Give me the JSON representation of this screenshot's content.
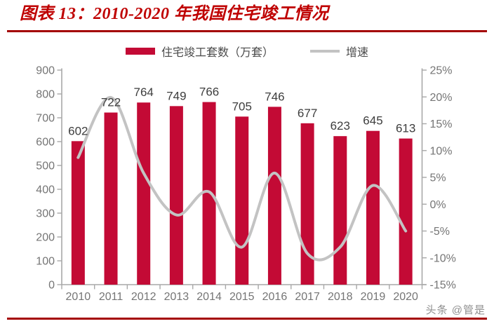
{
  "title": "图表 13：2010-2020 年我国住宅竣工情况",
  "watermark": "头条 @管是",
  "legend": {
    "bar_label": "住宅竣工套数（万套）",
    "line_label": "增速"
  },
  "colors": {
    "bar": "#C30A35",
    "line": "#C3C3C3",
    "title": "#BF0000",
    "rule": "#A40000",
    "axis": "#A8A8A8",
    "tick_label": "#757575",
    "data_label": "#3D3D3D",
    "legend_text": "#4A4A4A",
    "watermark": "#8F8F8F"
  },
  "chart_data": {
    "type": "bar",
    "title": "图表 13：2010-2020 年我国住宅竣工情况",
    "categories": [
      "2010",
      "2011",
      "2012",
      "2013",
      "2014",
      "2015",
      "2016",
      "2017",
      "2018",
      "2019",
      "2020"
    ],
    "series": [
      {
        "name": "住宅竣工套数（万套）",
        "type": "bar",
        "axis": "left",
        "values": [
          602,
          722,
          764,
          749,
          766,
          705,
          746,
          677,
          623,
          645,
          613
        ]
      },
      {
        "name": "增速",
        "type": "line",
        "axis": "right",
        "unit": "%",
        "values": [
          8.7,
          19.9,
          5.8,
          -2.0,
          2.3,
          -8.0,
          5.8,
          -9.2,
          -8.0,
          3.5,
          -5.0
        ]
      }
    ],
    "left_axis": {
      "min": 0,
      "max": 900,
      "step": 100,
      "ticks": [
        "0",
        "100",
        "200",
        "300",
        "400",
        "500",
        "600",
        "700",
        "800",
        "900"
      ]
    },
    "right_axis": {
      "min": -15,
      "max": 25,
      "step": 5,
      "ticks": [
        "-15%",
        "-10%",
        "-5%",
        "0%",
        "5%",
        "10%",
        "15%",
        "20%",
        "25%"
      ]
    },
    "grid": false,
    "legend_position": "top",
    "data_labels": true,
    "line_smoothed": true
  }
}
